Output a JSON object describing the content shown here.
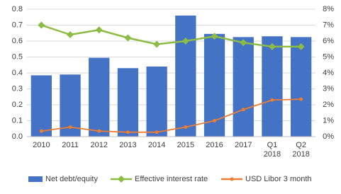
{
  "chart_data": {
    "type": "bar-line",
    "categories": [
      "2010",
      "2011",
      "2012",
      "2013",
      "2014",
      "2015",
      "2016",
      "2017",
      "Q1 2018",
      "Q2 2018"
    ],
    "series": [
      {
        "name": "Net debt/equity",
        "color": "#4472c4",
        "type": "bar",
        "values": [
          0.385,
          0.39,
          0.495,
          0.43,
          0.44,
          0.76,
          0.645,
          0.625,
          0.63,
          0.625
        ]
      },
      {
        "name": "Effective interest rate",
        "color": "#8cbc44",
        "type": "line",
        "marker": "diamond",
        "axis": "y2",
        "values": [
          7.0,
          6.4,
          6.7,
          6.2,
          5.8,
          6.0,
          6.3,
          5.9,
          5.65,
          5.65
        ]
      },
      {
        "name": "USD Libor 3 month",
        "color": "#ed7d31",
        "type": "line",
        "marker": "circle",
        "axis": "y2",
        "values": [
          0.35,
          0.6,
          0.35,
          0.28,
          0.28,
          0.6,
          1.0,
          1.7,
          2.3,
          2.35
        ]
      }
    ],
    "ylim": [
      0,
      0.8
    ],
    "yticks": [
      {
        "value": 0,
        "label": "0.0"
      },
      0.1,
      0.2,
      0.3,
      0.4,
      0.5,
      0.6,
      0.7,
      0.8
    ],
    "y2lim": [
      0,
      8
    ],
    "y2ticks": [
      {
        "value": 0,
        "label": "0%"
      },
      {
        "value": 1,
        "label": "1%"
      },
      {
        "value": 2,
        "label": "2%"
      },
      {
        "value": 3,
        "label": "3%"
      },
      {
        "value": 4,
        "label": "4%"
      },
      {
        "value": 5,
        "label": "5%"
      },
      {
        "value": 6,
        "label": "6%"
      },
      {
        "value": 7,
        "label": "7%"
      },
      {
        "value": 8,
        "label": "8%"
      }
    ],
    "grid": true,
    "legend": "bottom"
  }
}
